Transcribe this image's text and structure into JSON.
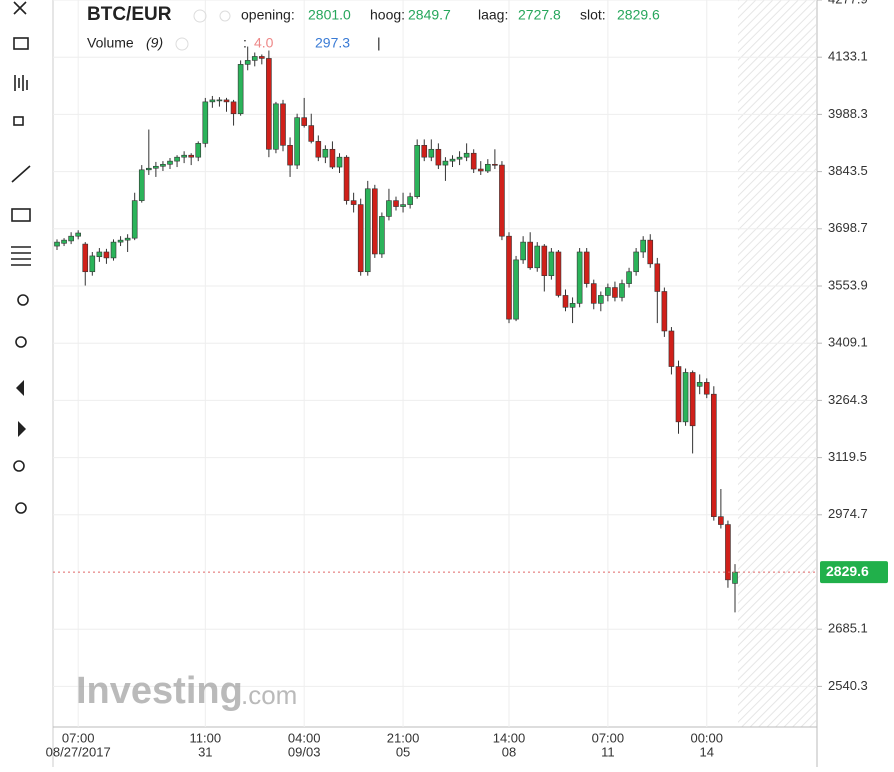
{
  "chart_data": {
    "type": "candlestick",
    "title": "BTC/EUR",
    "legend": {
      "open_label": "opening:",
      "high_label": "hoog:",
      "low_label": "laag:",
      "close_label": "slot:",
      "open": "2801.0",
      "high": "2849.7",
      "low": "2727.8",
      "close": "2829.6"
    },
    "volume_legend": {
      "name": "Volume",
      "period": "(9)",
      "separator": ":",
      "volume": "4.0",
      "average": "297.3",
      "divider": "|"
    },
    "watermark": {
      "brand": "Investing",
      "domain": ".com"
    },
    "up_color": "#2bb35a",
    "down_color": "#d0201a",
    "grid": true,
    "ylim": [
      2437.5,
      4277.9
    ],
    "yticks": [
      4277.9,
      4133.1,
      3988.3,
      3843.5,
      3698.7,
      3553.9,
      3409.1,
      3264.3,
      3119.5,
      2974.7,
      2685.1,
      2540.3
    ],
    "categories": [
      null,
      null,
      null,
      {
        "time": "07:00",
        "date": "08/27/2017"
      },
      null,
      null,
      null,
      null,
      null,
      null,
      null,
      null,
      null,
      null,
      null,
      null,
      null,
      null,
      null,
      null,
      null,
      {
        "time": "11:00",
        "date": "31"
      },
      null,
      null,
      null,
      null,
      null,
      null,
      null,
      null,
      null,
      null,
      null,
      null,
      null,
      {
        "time": "04:00",
        "date": "09/03"
      },
      null,
      null,
      null,
      null,
      null,
      null,
      null,
      null,
      null,
      null,
      null,
      null,
      null,
      {
        "time": "21:00",
        "date": "05"
      },
      null,
      null,
      null,
      null,
      null,
      null,
      null,
      null,
      null,
      null,
      null,
      null,
      null,
      null,
      {
        "time": "14:00",
        "date": "08"
      },
      null,
      null,
      null,
      null,
      null,
      null,
      null,
      null,
      null,
      null,
      null,
      null,
      null,
      {
        "time": "07:00",
        "date": "11"
      },
      null,
      null,
      null,
      null,
      null,
      null,
      null,
      null,
      null,
      null,
      null,
      null,
      null,
      {
        "time": "00:00",
        "date": "14"
      },
      null,
      null,
      null,
      null
    ],
    "open": [
      3655,
      3662,
      3668,
      3680,
      3660,
      3590,
      3628,
      3640,
      3625,
      3665,
      3670,
      3675,
      3770,
      3848,
      3852,
      3857,
      3862,
      3870,
      3880,
      3885,
      3880,
      3915,
      4020,
      4025,
      4025,
      4020,
      3990,
      4115,
      4125,
      4135,
      4130,
      3900,
      4015,
      3910,
      3860,
      3980,
      3960,
      3920,
      3880,
      3900,
      3855,
      3880,
      3770,
      3760,
      3590,
      3800,
      3635,
      3730,
      3770,
      3755,
      3760,
      3780,
      3910,
      3880,
      3900,
      3860,
      3870,
      3875,
      3880,
      3890,
      3850,
      3845,
      3862,
      3860,
      3680,
      3470,
      3620,
      3665,
      3600,
      3655,
      3580,
      3640,
      3530,
      3500,
      3510,
      3640,
      3560,
      3510,
      3530,
      3550,
      3525,
      3560,
      3590,
      3640,
      3670,
      3610,
      3540,
      3440,
      3350,
      3210,
      3335,
      3300,
      3310,
      3280,
      2970,
      2950,
      2801.0
    ],
    "high": [
      3672,
      3675,
      3690,
      3695,
      3665,
      3640,
      3650,
      3648,
      3672,
      3680,
      3685,
      3790,
      3860,
      3950,
      3868,
      3870,
      3878,
      3885,
      3895,
      3890,
      3920,
      4030,
      4035,
      4032,
      4030,
      4025,
      4125,
      4160,
      4145,
      4140,
      4150,
      4020,
      4025,
      3930,
      3990,
      4030,
      3990,
      3935,
      3910,
      3920,
      3890,
      3885,
      3790,
      3775,
      3820,
      3810,
      3740,
      3800,
      3780,
      3790,
      3790,
      3925,
      3925,
      3925,
      3915,
      3880,
      3885,
      3895,
      3915,
      3900,
      3870,
      3875,
      3900,
      3870,
      3690,
      3630,
      3680,
      3690,
      3665,
      3660,
      3650,
      3645,
      3545,
      3525,
      3650,
      3650,
      3570,
      3540,
      3560,
      3565,
      3570,
      3600,
      3650,
      3680,
      3685,
      3625,
      3550,
      3450,
      3365,
      3345,
      3340,
      3330,
      3320,
      3300,
      3040,
      2960,
      2849.7
    ],
    "low": [
      3645,
      3655,
      3660,
      3672,
      3555,
      3580,
      3615,
      3610,
      3618,
      3655,
      3640,
      3670,
      3765,
      3835,
      3830,
      3845,
      3850,
      3855,
      3865,
      3860,
      3870,
      3905,
      4005,
      4008,
      3995,
      3960,
      3985,
      4100,
      4110,
      4115,
      3880,
      3890,
      3895,
      3830,
      3850,
      3955,
      3915,
      3870,
      3865,
      3850,
      3840,
      3760,
      3740,
      3580,
      3580,
      3625,
      3625,
      3720,
      3745,
      3740,
      3750,
      3775,
      3870,
      3870,
      3850,
      3820,
      3855,
      3860,
      3870,
      3840,
      3835,
      3840,
      3850,
      3670,
      3460,
      3465,
      3610,
      3595,
      3590,
      3540,
      3570,
      3525,
      3490,
      3460,
      3500,
      3550,
      3495,
      3490,
      3515,
      3515,
      3515,
      3550,
      3580,
      3625,
      3600,
      3460,
      3425,
      3330,
      3180,
      3200,
      3130,
      3280,
      3270,
      2960,
      2940,
      2790,
      2727.8
    ],
    "close": [
      3665,
      3670,
      3680,
      3688,
      3590,
      3630,
      3640,
      3625,
      3665,
      3670,
      3675,
      3770,
      3848,
      3852,
      3857,
      3862,
      3870,
      3880,
      3885,
      3880,
      3915,
      4020,
      4025,
      4025,
      4020,
      3990,
      4115,
      4125,
      4135,
      4130,
      3900,
      4015,
      3910,
      3860,
      3980,
      3960,
      3920,
      3880,
      3900,
      3855,
      3880,
      3770,
      3760,
      3590,
      3800,
      3635,
      3730,
      3770,
      3755,
      3760,
      3780,
      3910,
      3880,
      3900,
      3860,
      3870,
      3875,
      3880,
      3890,
      3850,
      3845,
      3862,
      3860,
      3680,
      3470,
      3620,
      3665,
      3600,
      3655,
      3580,
      3640,
      3530,
      3500,
      3510,
      3640,
      3560,
      3510,
      3530,
      3550,
      3525,
      3560,
      3590,
      3640,
      3670,
      3610,
      3540,
      3440,
      3350,
      3210,
      3335,
      3200,
      3310,
      3280,
      2970,
      2950,
      2810,
      2829.6
    ]
  }
}
